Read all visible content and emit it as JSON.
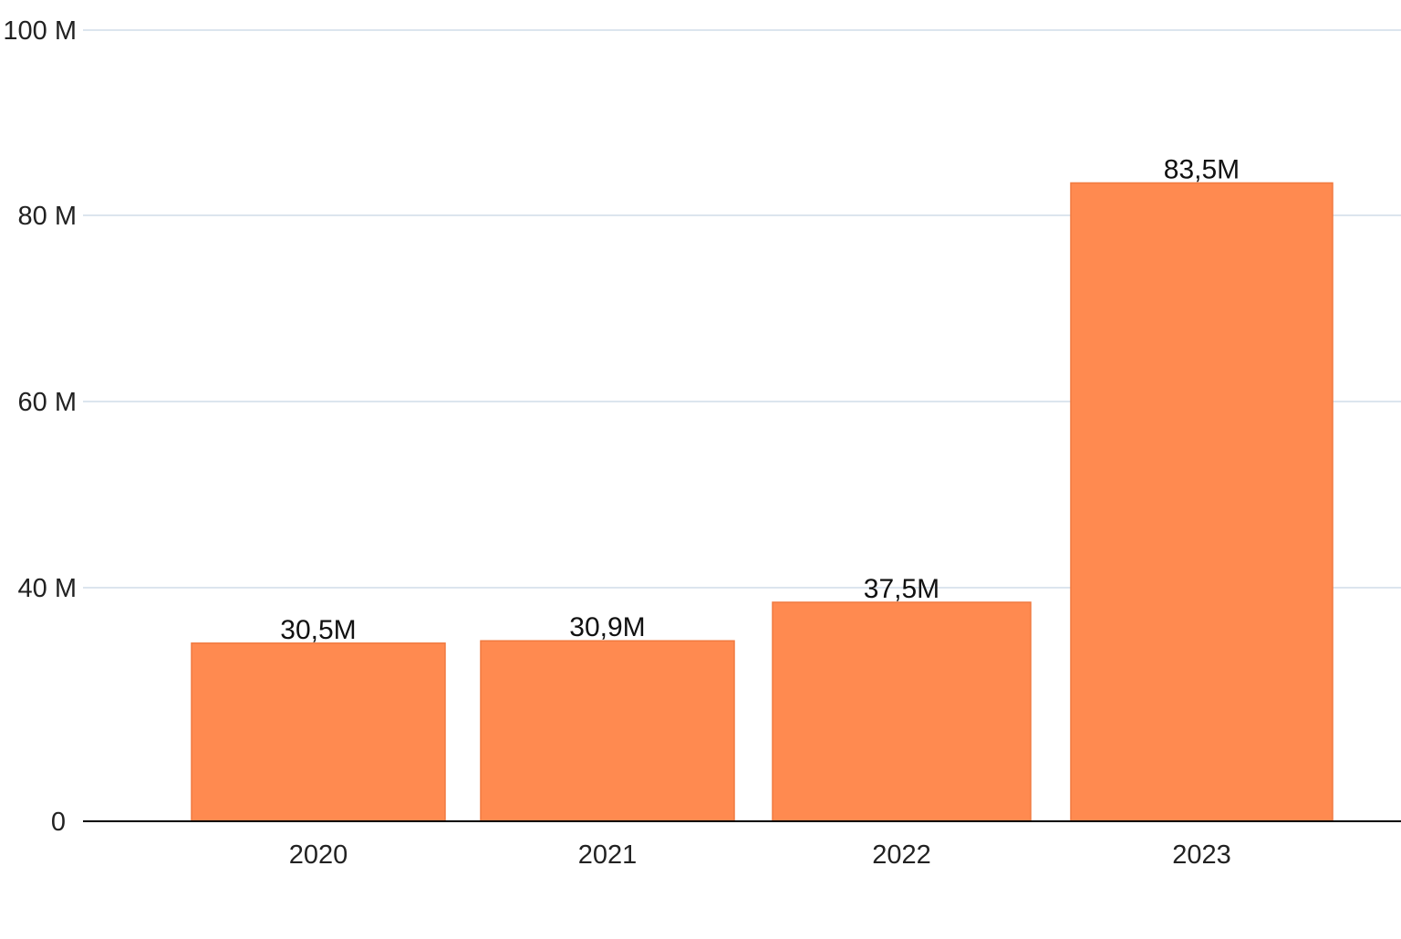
{
  "chart_data": {
    "type": "bar",
    "title": "",
    "xlabel": "",
    "ylabel": "",
    "categories": [
      "2020",
      "2021",
      "2022",
      "2023"
    ],
    "series": [
      {
        "values": [
          30500000,
          30900000,
          37500000,
          83500000
        ],
        "data_labels": [
          "30,5M",
          "30,9M",
          "37,5M",
          "83,5M"
        ]
      }
    ],
    "y_ticks": [
      {
        "value": 0,
        "label": "0"
      },
      {
        "value": 40000000,
        "label": "40 M"
      },
      {
        "value": 60000000,
        "label": "60 M"
      },
      {
        "value": 80000000,
        "label": "80 M"
      },
      {
        "value": 100000000,
        "label": "100 M"
      }
    ],
    "ylim": [
      0,
      100000000
    ],
    "grid": true,
    "legend": "none",
    "colors": {
      "bar": "#FF8A50",
      "bar_stroke": "#F07A40",
      "grid": "#DCE5EE",
      "axis": "#000000"
    }
  }
}
